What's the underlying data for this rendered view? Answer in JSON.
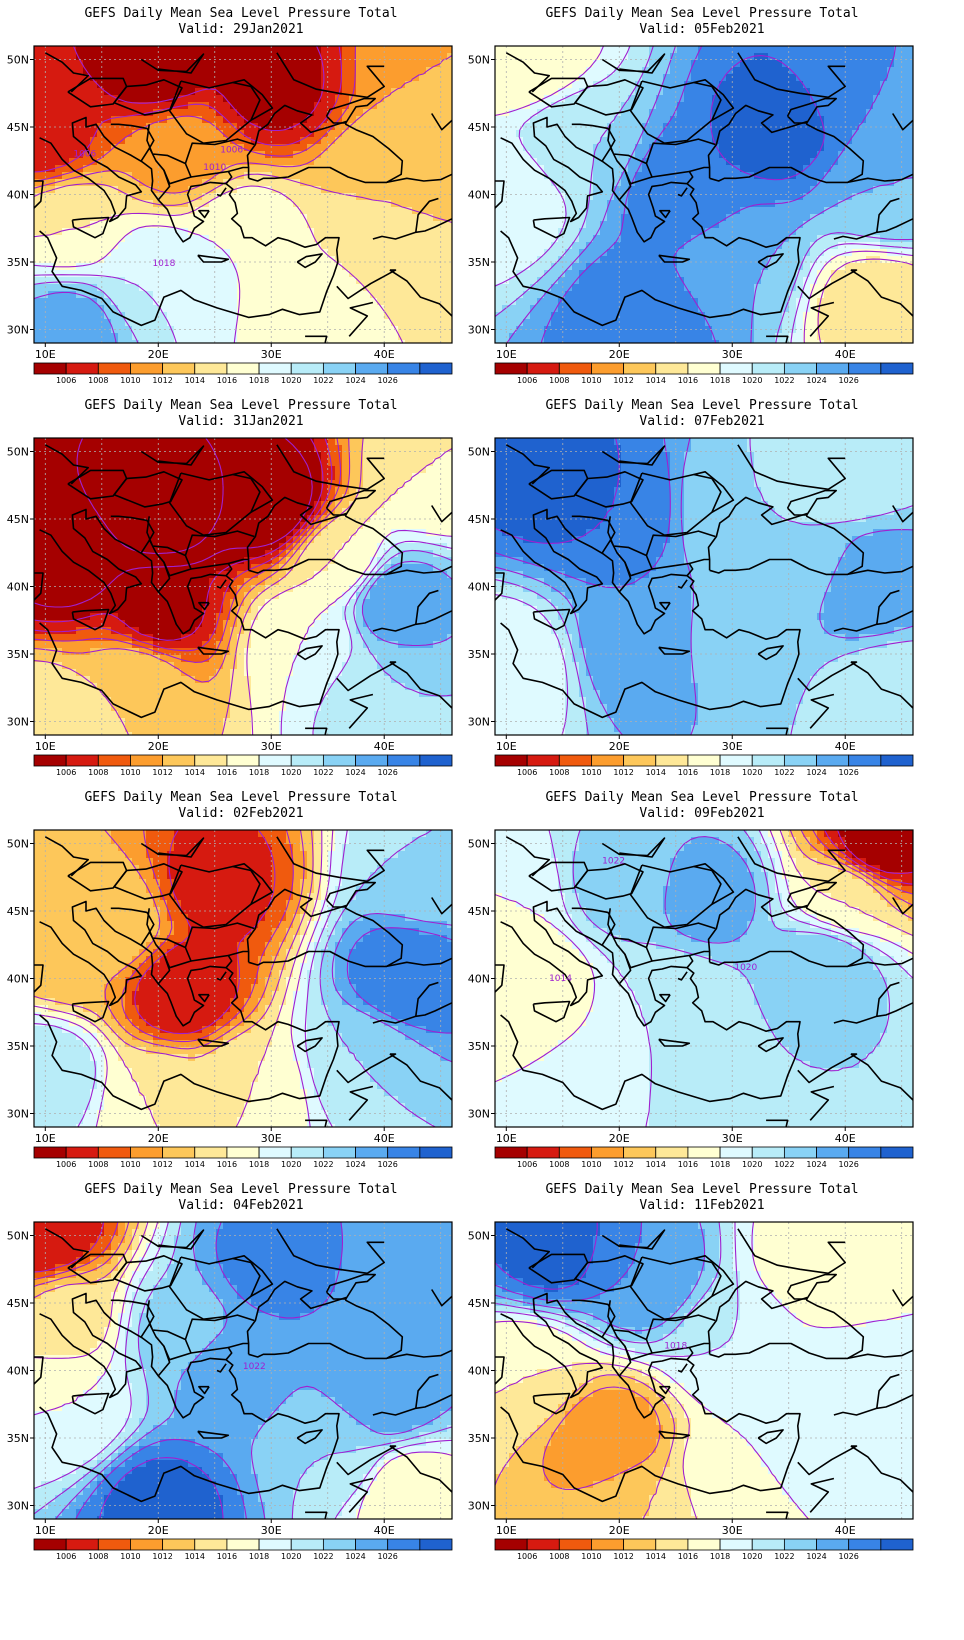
{
  "panels": [
    {
      "title": "GEFS Daily Mean Sea Level Pressure Total",
      "valid": "Valid: 29Jan2021",
      "col": 0,
      "row": 0,
      "centers": [
        {
          "x": 20,
          "y": 50,
          "v": 1002
        },
        {
          "x": 30,
          "y": 48,
          "v": 1003
        },
        {
          "x": 10,
          "y": 44,
          "v": 1005
        },
        {
          "x": 22,
          "y": 43,
          "v": 1009
        },
        {
          "x": 40,
          "y": 41,
          "v": 1012
        },
        {
          "x": 42,
          "y": 36,
          "v": 1012
        },
        {
          "x": 12,
          "y": 38,
          "v": 1014
        },
        {
          "x": 27,
          "y": 37,
          "v": 1016
        },
        {
          "x": 20,
          "y": 34,
          "v": 1018
        },
        {
          "x": 12,
          "y": 30,
          "v": 1023
        },
        {
          "x": 35,
          "y": 31,
          "v": 1015
        },
        {
          "x": 44,
          "y": 49,
          "v": 1010
        }
      ],
      "contour_labels": [
        {
          "text": "1006",
          "lon": 13.5,
          "lat": 43.0
        },
        {
          "text": "1006",
          "lon": 26.5,
          "lat": 43.3
        },
        {
          "text": "1010",
          "lon": 25.0,
          "lat": 42.0
        },
        {
          "text": "1018",
          "lon": 20.5,
          "lat": 34.9
        }
      ]
    },
    {
      "title": "GEFS Daily Mean Sea Level Pressure Total",
      "valid": "Valid: 31Jan2021",
      "col": 0,
      "row": 1,
      "centers": [
        {
          "x": 20,
          "y": 46,
          "v": 998
        },
        {
          "x": 12,
          "y": 42,
          "v": 1001
        },
        {
          "x": 30,
          "y": 46,
          "v": 1000
        },
        {
          "x": 20,
          "y": 38,
          "v": 1003
        },
        {
          "x": 18,
          "y": 33,
          "v": 1012
        },
        {
          "x": 36,
          "y": 42,
          "v": 1014
        },
        {
          "x": 41,
          "y": 39,
          "v": 1024
        },
        {
          "x": 33,
          "y": 36,
          "v": 1016
        },
        {
          "x": 40,
          "y": 32,
          "v": 1020
        },
        {
          "x": 44,
          "y": 48,
          "v": 1014
        },
        {
          "x": 10,
          "y": 30,
          "v": 1014
        }
      ],
      "contour_labels": []
    },
    {
      "title": "GEFS Daily Mean Sea Level Pressure Total",
      "valid": "Valid: 02Feb2021",
      "col": 0,
      "row": 2,
      "centers": [
        {
          "x": 25,
          "y": 47,
          "v": 1005
        },
        {
          "x": 22,
          "y": 39,
          "v": 1004
        },
        {
          "x": 16,
          "y": 44,
          "v": 1012
        },
        {
          "x": 12,
          "y": 42,
          "v": 1010
        },
        {
          "x": 42,
          "y": 40,
          "v": 1026
        },
        {
          "x": 38,
          "y": 34,
          "v": 1020
        },
        {
          "x": 10,
          "y": 33,
          "v": 1020
        },
        {
          "x": 44,
          "y": 48,
          "v": 1020
        },
        {
          "x": 28,
          "y": 32,
          "v": 1014
        },
        {
          "x": 20,
          "y": 31,
          "v": 1014
        }
      ],
      "contour_labels": []
    },
    {
      "title": "GEFS Daily Mean Sea Level Pressure Total",
      "valid": "Valid: 04Feb2021",
      "col": 0,
      "row": 3,
      "centers": [
        {
          "x": 10,
          "y": 50,
          "v": 1004
        },
        {
          "x": 12,
          "y": 44,
          "v": 1013
        },
        {
          "x": 12,
          "y": 37,
          "v": 1016
        },
        {
          "x": 22,
          "y": 43,
          "v": 1021
        },
        {
          "x": 30,
          "y": 48,
          "v": 1025
        },
        {
          "x": 26,
          "y": 40,
          "v": 1023
        },
        {
          "x": 20,
          "y": 30,
          "v": 1027
        },
        {
          "x": 40,
          "y": 38,
          "v": 1024
        },
        {
          "x": 42,
          "y": 31,
          "v": 1014
        },
        {
          "x": 36,
          "y": 34,
          "v": 1020
        },
        {
          "x": 44,
          "y": 46,
          "v": 1022
        }
      ],
      "contour_labels": [
        {
          "text": "1022",
          "lon": 28.5,
          "lat": 40.3
        }
      ]
    },
    {
      "title": "GEFS Daily Mean Sea Level Pressure Total",
      "valid": "Valid: 05Feb2021",
      "col": 1,
      "row": 0,
      "centers": [
        {
          "x": 34,
          "y": 45,
          "v": 1027
        },
        {
          "x": 26,
          "y": 40,
          "v": 1026
        },
        {
          "x": 22,
          "y": 31,
          "v": 1026
        },
        {
          "x": 16,
          "y": 44,
          "v": 1020
        },
        {
          "x": 10,
          "y": 40,
          "v": 1016
        },
        {
          "x": 12,
          "y": 50,
          "v": 1014
        },
        {
          "x": 43,
          "y": 32,
          "v": 1012
        },
        {
          "x": 44,
          "y": 40,
          "v": 1022
        },
        {
          "x": 30,
          "y": 35,
          "v": 1022
        },
        {
          "x": 42,
          "y": 48,
          "v": 1024
        }
      ],
      "contour_labels": []
    },
    {
      "title": "GEFS Daily Mean Sea Level Pressure Total",
      "valid": "Valid: 07Feb2021",
      "col": 1,
      "row": 1,
      "centers": [
        {
          "x": 14,
          "y": 48,
          "v": 1027
        },
        {
          "x": 20,
          "y": 46,
          "v": 1026
        },
        {
          "x": 22,
          "y": 36,
          "v": 1024
        },
        {
          "x": 10,
          "y": 34,
          "v": 1016
        },
        {
          "x": 30,
          "y": 46,
          "v": 1020
        },
        {
          "x": 36,
          "y": 42,
          "v": 1020
        },
        {
          "x": 42,
          "y": 40,
          "v": 1024
        },
        {
          "x": 30,
          "y": 36,
          "v": 1021
        },
        {
          "x": 44,
          "y": 32,
          "v": 1018
        },
        {
          "x": 40,
          "y": 49,
          "v": 1018
        }
      ],
      "contour_labels": []
    },
    {
      "title": "GEFS Daily Mean Sea Level Pressure Total",
      "valid": "Valid: 09Feb2021",
      "col": 1,
      "row": 2,
      "centers": [
        {
          "x": 43,
          "y": 50,
          "v": 1002
        },
        {
          "x": 40,
          "y": 46,
          "v": 1014
        },
        {
          "x": 12,
          "y": 40,
          "v": 1014
        },
        {
          "x": 20,
          "y": 47,
          "v": 1021
        },
        {
          "x": 28,
          "y": 46,
          "v": 1023
        },
        {
          "x": 38,
          "y": 41,
          "v": 1022
        },
        {
          "x": 25,
          "y": 38,
          "v": 1018
        },
        {
          "x": 20,
          "y": 31,
          "v": 1018
        },
        {
          "x": 40,
          "y": 32,
          "v": 1020
        },
        {
          "x": 10,
          "y": 46,
          "v": 1016
        }
      ],
      "contour_labels": [
        {
          "text": "1022",
          "lon": 19.5,
          "lat": 48.7
        },
        {
          "text": "1014",
          "lon": 14.8,
          "lat": 40.0
        },
        {
          "text": "1020",
          "lon": 31.2,
          "lat": 40.8
        }
      ]
    },
    {
      "title": "GEFS Daily Mean Sea Level Pressure Total",
      "valid": "Valid: 11Feb2021",
      "col": 1,
      "row": 3,
      "centers": [
        {
          "x": 14,
          "y": 49,
          "v": 1027
        },
        {
          "x": 22,
          "y": 47,
          "v": 1024
        },
        {
          "x": 19,
          "y": 35,
          "v": 1008
        },
        {
          "x": 12,
          "y": 40,
          "v": 1014
        },
        {
          "x": 30,
          "y": 42,
          "v": 1018
        },
        {
          "x": 40,
          "y": 38,
          "v": 1018
        },
        {
          "x": 38,
          "y": 48,
          "v": 1014
        },
        {
          "x": 44,
          "y": 44,
          "v": 1016
        },
        {
          "x": 30,
          "y": 32,
          "v": 1016
        },
        {
          "x": 22,
          "y": 30,
          "v": 1012
        }
      ],
      "contour_labels": [
        {
          "text": "1018",
          "lon": 25.0,
          "lat": 41.8
        }
      ]
    }
  ],
  "axes": {
    "x_ticks": [
      {
        "label": "10E",
        "lon": 10
      },
      {
        "label": "20E",
        "lon": 20
      },
      {
        "label": "30E",
        "lon": 30
      },
      {
        "label": "40E",
        "lon": 40
      }
    ],
    "y_ticks": [
      {
        "label": "50N",
        "lat": 50
      },
      {
        "label": "45N",
        "lat": 45
      },
      {
        "label": "40N",
        "lat": 40
      },
      {
        "label": "35N",
        "lat": 35
      },
      {
        "label": "30N",
        "lat": 30
      }
    ],
    "lon_range": [
      9,
      46
    ],
    "lat_range": [
      29,
      51
    ]
  },
  "colorbar": {
    "labels": [
      "1006",
      "1008",
      "1010",
      "1012",
      "1014",
      "1016",
      "1018",
      "1020",
      "1022",
      "1024",
      "1026"
    ],
    "colors": [
      "#a50000",
      "#d61a10",
      "#f05a0e",
      "#fc9d2e",
      "#fdc75a",
      "#fee898",
      "#ffffd2",
      "#dffaff",
      "#b8ecf8",
      "#89d2f5",
      "#5aaaf0",
      "#3884e6",
      "#1f62cf"
    ],
    "levels_start": 1004,
    "levels_step": 2
  },
  "colors": {
    "isobar": "#a020d0",
    "coast": "#000000",
    "grid": "#b0b0b0",
    "label": "#a020d0"
  }
}
